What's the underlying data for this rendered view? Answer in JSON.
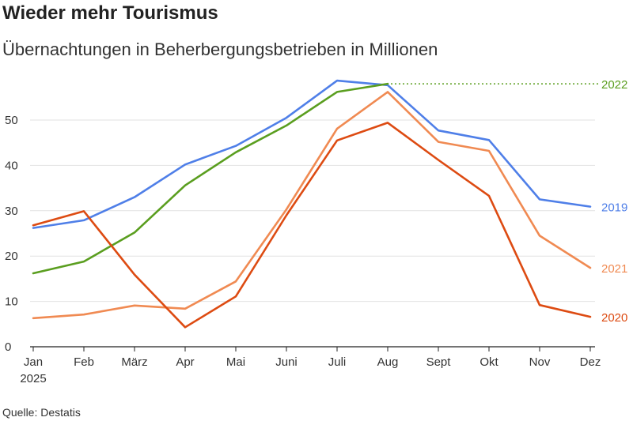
{
  "title": "Wieder mehr Tourismus",
  "subtitle": "Übernachtungen in Beherbergungsbetrieben in Millionen",
  "source": "Quelle: Destatis",
  "chart_data": {
    "type": "line",
    "categories": [
      "Jan",
      "Feb",
      "März",
      "Apr",
      "Mai",
      "Juni",
      "Juli",
      "Aug",
      "Sept",
      "Okt",
      "Nov",
      "Dez"
    ],
    "x_year_label": "2025",
    "ylim": [
      0,
      58
    ],
    "yticks": [
      0,
      10,
      20,
      30,
      40,
      50
    ],
    "grid": true,
    "series": [
      {
        "name": "2019",
        "color": "#4f7fe8",
        "values": [
          26.2,
          27.9,
          33.0,
          40.2,
          44.3,
          50.5,
          58.7,
          57.7,
          47.7,
          45.6,
          32.5,
          30.9
        ]
      },
      {
        "name": "2022",
        "color": "#5a9e1f",
        "values": [
          16.2,
          18.8,
          25.2,
          35.6,
          42.9,
          48.8,
          56.2,
          58.0,
          null,
          null,
          null,
          null
        ],
        "extension_line": "dotted"
      },
      {
        "name": "2021",
        "color": "#f08a52",
        "values": [
          6.3,
          7.1,
          9.1,
          8.4,
          14.4,
          30.3,
          48.1,
          56.2,
          45.2,
          43.2,
          24.5,
          17.4
        ]
      },
      {
        "name": "2020",
        "color": "#dd4b12",
        "values": [
          26.8,
          29.9,
          15.9,
          4.3,
          11.1,
          29.0,
          45.5,
          49.4,
          41.2,
          33.3,
          9.2,
          6.6
        ]
      }
    ]
  }
}
